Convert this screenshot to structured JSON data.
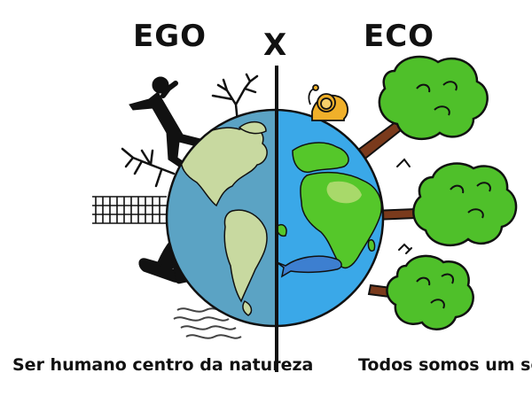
{
  "titles": {
    "left": "EGO",
    "separator": "X",
    "right": "ECO"
  },
  "captions": {
    "left": "Ser humano centro da natureza",
    "right": "Todos somos um só"
  },
  "colors": {
    "ocean_left": "#5ba3c4",
    "land_left": "#c8d9a0",
    "ocean_right": "#3aa8e8",
    "land_right": "#55c72a",
    "desert": "#a8d96a",
    "tree_leaves": "#4fc02a",
    "trunk": "#7a3a1c",
    "lion": "#f0b02a",
    "whale": "#3d7fd0",
    "outline": "#111111"
  },
  "icons": [
    "human-figure-icon",
    "dead-tree-icon",
    "fence-icon",
    "machine-icon",
    "smog-icon",
    "lion-icon",
    "whale-icon",
    "tree-icon",
    "bird-icon"
  ]
}
